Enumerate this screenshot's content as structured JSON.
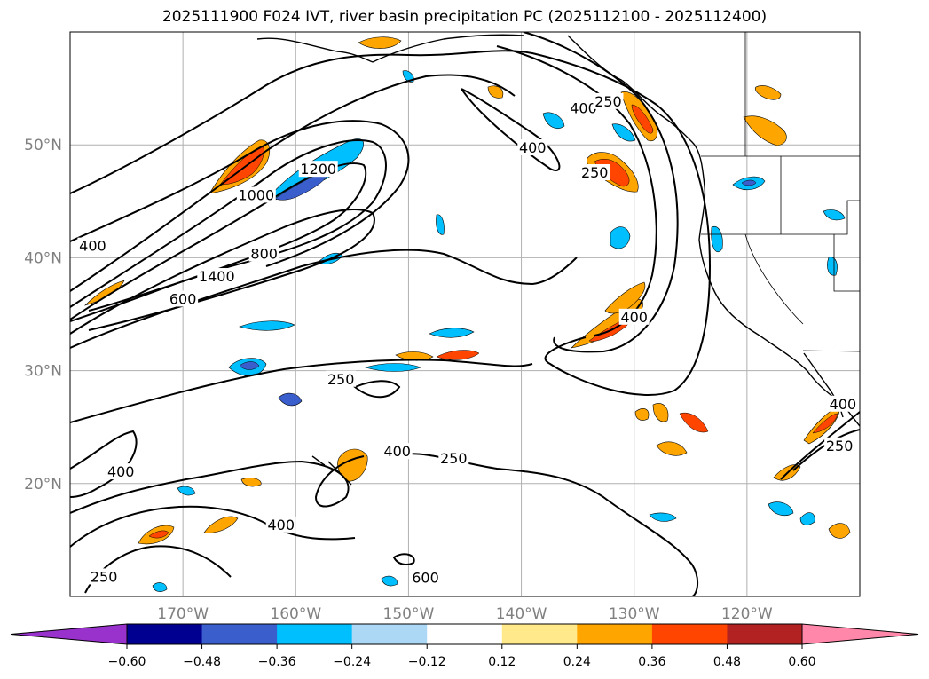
{
  "title": "2025111900 F024 IVT, river basin precipitation PC (2025112100 - 2025112400)",
  "map": {
    "extent": {
      "lon_min": -180,
      "lon_max": -110,
      "lat_min": 10,
      "lat_max": 60
    },
    "lat_ticks": [
      {
        "value": 20,
        "label": "20°N"
      },
      {
        "value": 30,
        "label": "30°N"
      },
      {
        "value": 40,
        "label": "40°N"
      },
      {
        "value": 50,
        "label": "50°N"
      }
    ],
    "lon_ticks": [
      {
        "value": -170,
        "label": "170°W"
      },
      {
        "value": -160,
        "label": "160°W"
      },
      {
        "value": -150,
        "label": "150°W"
      },
      {
        "value": -140,
        "label": "140°W"
      },
      {
        "value": -130,
        "label": "130°W"
      },
      {
        "value": -120,
        "label": "120°W"
      }
    ],
    "grid": true,
    "contour_color": "#000000",
    "contour_labels": [
      {
        "text": "400",
        "lon": -178,
        "lat": 41
      },
      {
        "text": "1000",
        "lon": -163.5,
        "lat": 45.5
      },
      {
        "text": "1200",
        "lon": -158,
        "lat": 47.8
      },
      {
        "text": "1400",
        "lon": -167,
        "lat": 38.3
      },
      {
        "text": "800",
        "lon": -162.8,
        "lat": 40.3
      },
      {
        "text": "600",
        "lon": -170,
        "lat": 36.3
      },
      {
        "text": "400",
        "lon": -134.5,
        "lat": 53.2
      },
      {
        "text": "250",
        "lon": -132.3,
        "lat": 53.8
      },
      {
        "text": "400",
        "lon": -139,
        "lat": 49.7
      },
      {
        "text": "250",
        "lon": -133.5,
        "lat": 47.5
      },
      {
        "text": "400",
        "lon": -130,
        "lat": 34.7
      },
      {
        "text": "250",
        "lon": -156,
        "lat": 29.2
      },
      {
        "text": "400",
        "lon": -175.5,
        "lat": 21
      },
      {
        "text": "400",
        "lon": -151,
        "lat": 22.8
      },
      {
        "text": "250",
        "lon": -146,
        "lat": 22.2
      },
      {
        "text": "400",
        "lon": -161.3,
        "lat": 16.3
      },
      {
        "text": "600",
        "lon": -148.5,
        "lat": 11.6
      },
      {
        "text": "250",
        "lon": -177,
        "lat": 11.7
      },
      {
        "text": "400",
        "lon": -111.5,
        "lat": 27
      },
      {
        "text": "250",
        "lon": -111.8,
        "lat": 23.3
      }
    ]
  },
  "colorbar": {
    "colors": [
      "#9932cc",
      "#000090",
      "#3a5fcd",
      "#00bfff",
      "#add8f5",
      "#ffffff",
      "#ffe98a",
      "#ffa500",
      "#ff4500",
      "#b22222",
      "#ff88aa"
    ],
    "extend_min_color": "#9932cc",
    "extend_max_color": "#ff88aa",
    "boundaries": [
      -0.6,
      -0.48,
      -0.36,
      -0.24,
      -0.12,
      0.12,
      0.24,
      0.36,
      0.48,
      0.6
    ],
    "tick_labels": [
      "−0.60",
      "−0.48",
      "−0.36",
      "−0.24",
      "−0.12",
      "0.12",
      "0.24",
      "0.36",
      "0.48",
      "0.60"
    ]
  }
}
